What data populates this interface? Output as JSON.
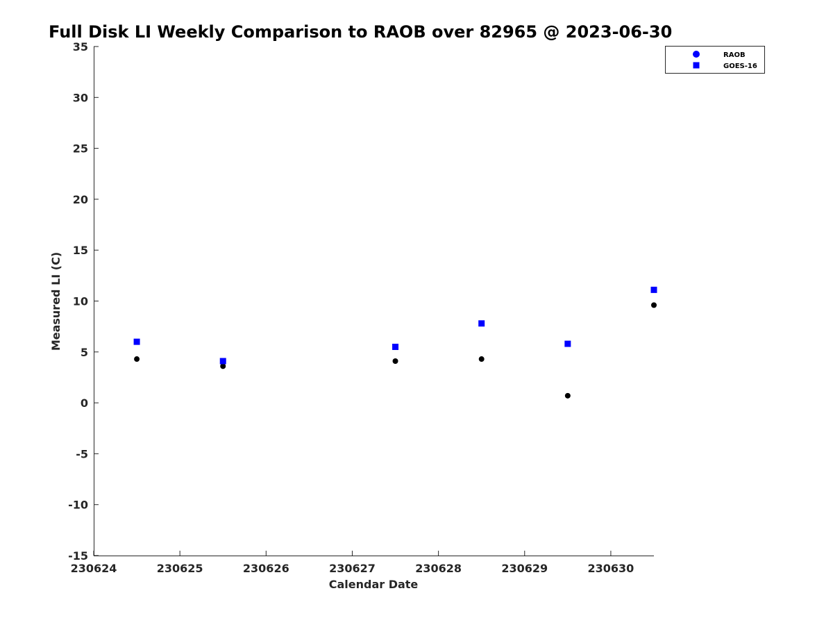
{
  "chart_data": {
    "type": "scatter",
    "title": "Full Disk LI Weekly Comparison to RAOB over 82965 @ 2023-06-30",
    "xlabel": "Calendar Date",
    "ylabel": "Measured LI (C)",
    "xlim": [
      "2023-06-24",
      "2023-06-30 12:00"
    ],
    "ylim": [
      -15,
      35
    ],
    "x_ticks": [
      "230624",
      "230625",
      "230626",
      "230627",
      "230628",
      "230629",
      "230630"
    ],
    "y_ticks": [
      "35",
      "30",
      "25",
      "20",
      "15",
      "10",
      "5",
      "0",
      "-5",
      "-10",
      "-15"
    ],
    "legend_position": "top-right",
    "grid": false,
    "series": [
      {
        "name": "RAOB",
        "marker": "circle",
        "color": "#000000",
        "legend_color": "#0000ff",
        "points": [
          {
            "x": "2023-06-24 12:00",
            "y": 4.3
          },
          {
            "x": "2023-06-25 12:00",
            "y": 3.6
          },
          {
            "x": "2023-06-27 12:00",
            "y": 4.1
          },
          {
            "x": "2023-06-28 12:00",
            "y": 4.3
          },
          {
            "x": "2023-06-29 12:00",
            "y": 0.7
          },
          {
            "x": "2023-06-30 12:00",
            "y": 9.6
          }
        ]
      },
      {
        "name": "GOES-16",
        "marker": "square",
        "color": "#0000ff",
        "legend_color": "#0000ff",
        "points": [
          {
            "x": "2023-06-24 12:00",
            "y": 6.0
          },
          {
            "x": "2023-06-25 12:00",
            "y": 4.1
          },
          {
            "x": "2023-06-27 12:00",
            "y": 5.5
          },
          {
            "x": "2023-06-28 12:00",
            "y": 7.8
          },
          {
            "x": "2023-06-29 12:00",
            "y": 5.8
          },
          {
            "x": "2023-06-30 12:00",
            "y": 11.1
          }
        ]
      }
    ]
  }
}
